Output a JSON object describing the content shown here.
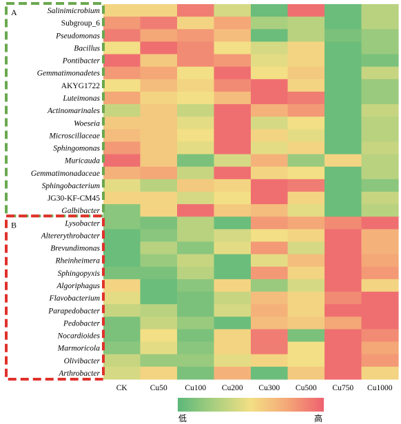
{
  "chart_data": {
    "type": "heatmap",
    "columns": [
      "CK",
      "Cu50",
      "Cu100",
      "Cu200",
      "Cu300",
      "Cu500",
      "Cu750",
      "Cu1000"
    ],
    "rows": [
      {
        "label": "Salinimicrobium",
        "italic": true
      },
      {
        "label": "Subgroup_6",
        "italic": false
      },
      {
        "label": "Pseudomonas",
        "italic": true
      },
      {
        "label": "Bacillus",
        "italic": true
      },
      {
        "label": "Pontibacter",
        "italic": true
      },
      {
        "label": "Gemmatimonadetes",
        "italic": true
      },
      {
        "label": "AKYG1722",
        "italic": false
      },
      {
        "label": "Luteimonas",
        "italic": true
      },
      {
        "label": "Actinomarinales",
        "italic": true
      },
      {
        "label": "Woeseia",
        "italic": true
      },
      {
        "label": "Microscillaceae",
        "italic": true
      },
      {
        "label": "Sphingomonas",
        "italic": true
      },
      {
        "label": "Muricauda",
        "italic": true
      },
      {
        "label": "Gemmatimonadaceae",
        "italic": true
      },
      {
        "label": "Sphingobacterium",
        "italic": true
      },
      {
        "label": "JG30-KF-CM45",
        "italic": false
      },
      {
        "label": "Galbibacter",
        "italic": true
      },
      {
        "label": "Lysobacter",
        "italic": true
      },
      {
        "label": "Altererythrobacter",
        "italic": true
      },
      {
        "label": "Brevundimonas",
        "italic": true
      },
      {
        "label": "Rheinheimera",
        "italic": true
      },
      {
        "label": "Sphingopyxis",
        "italic": true
      },
      {
        "label": "Algoriphagus",
        "italic": true
      },
      {
        "label": "Flavobacterium",
        "italic": true
      },
      {
        "label": "Parapedobacter",
        "italic": true
      },
      {
        "label": "Pedobacter",
        "italic": true
      },
      {
        "label": "Nocardioides",
        "italic": true
      },
      {
        "label": "Marmoricola",
        "italic": true
      },
      {
        "label": "Olivibacter",
        "italic": true
      },
      {
        "label": "Arthrobacter",
        "italic": true
      }
    ],
    "values": [
      [
        0.55,
        0.55,
        0.9,
        0.4,
        0.05,
        0.95,
        0.05,
        0.3
      ],
      [
        0.8,
        0.9,
        0.55,
        0.75,
        0.25,
        0.3,
        0.05,
        0.3
      ],
      [
        0.9,
        0.75,
        0.8,
        0.65,
        0.05,
        0.3,
        0.1,
        0.2
      ],
      [
        0.5,
        0.95,
        0.85,
        0.5,
        0.4,
        0.55,
        0.05,
        0.2
      ],
      [
        0.95,
        0.6,
        0.85,
        0.8,
        0.45,
        0.55,
        0.05,
        0.1
      ],
      [
        0.8,
        0.75,
        0.5,
        0.95,
        0.5,
        0.6,
        0.05,
        0.35
      ],
      [
        0.5,
        0.65,
        0.55,
        0.85,
        0.95,
        0.55,
        0.05,
        0.2
      ],
      [
        0.75,
        0.55,
        0.5,
        0.65,
        0.95,
        0.9,
        0.05,
        0.2
      ],
      [
        0.35,
        0.6,
        0.35,
        0.95,
        0.7,
        0.8,
        0.05,
        0.35
      ],
      [
        0.6,
        0.6,
        0.45,
        0.95,
        0.4,
        0.5,
        0.05,
        0.3
      ],
      [
        0.65,
        0.6,
        0.5,
        0.95,
        0.55,
        0.45,
        0.05,
        0.3
      ],
      [
        0.8,
        0.6,
        0.45,
        0.95,
        0.45,
        0.55,
        0.05,
        0.35
      ],
      [
        0.95,
        0.6,
        0.1,
        0.4,
        0.7,
        0.2,
        0.55,
        0.3
      ],
      [
        0.7,
        0.75,
        0.35,
        0.95,
        0.55,
        0.5,
        0.05,
        0.3
      ],
      [
        0.45,
        0.3,
        0.6,
        0.55,
        0.95,
        0.9,
        0.05,
        0.15
      ],
      [
        0.55,
        0.55,
        0.4,
        0.5,
        0.95,
        0.55,
        0.05,
        0.35
      ],
      [
        0.15,
        0.55,
        0.95,
        0.6,
        0.65,
        0.45,
        0.05,
        0.3
      ],
      [
        0.15,
        0.1,
        0.3,
        0.05,
        0.8,
        0.75,
        0.85,
        0.95
      ],
      [
        0.05,
        0.15,
        0.3,
        0.4,
        0.5,
        0.55,
        0.95,
        0.7
      ],
      [
        0.05,
        0.3,
        0.15,
        0.45,
        0.8,
        0.4,
        0.95,
        0.7
      ],
      [
        0.05,
        0.2,
        0.35,
        0.05,
        0.45,
        0.65,
        0.95,
        0.75
      ],
      [
        0.1,
        0.1,
        0.3,
        0.05,
        0.8,
        0.55,
        0.95,
        0.8
      ],
      [
        0.55,
        0.05,
        0.15,
        0.55,
        0.2,
        0.4,
        0.95,
        0.55
      ],
      [
        0.45,
        0.05,
        0.1,
        0.35,
        0.65,
        0.55,
        0.85,
        0.95
      ],
      [
        0.35,
        0.3,
        0.1,
        0.4,
        0.7,
        0.55,
        0.95,
        0.95
      ],
      [
        0.1,
        0.35,
        0.2,
        0.05,
        0.65,
        0.6,
        0.75,
        0.95
      ],
      [
        0.1,
        0.5,
        0.1,
        0.55,
        0.9,
        0.1,
        0.95,
        0.85
      ],
      [
        0.15,
        0.45,
        0.15,
        0.55,
        0.9,
        0.5,
        0.95,
        0.75
      ],
      [
        0.35,
        0.2,
        0.2,
        0.45,
        0.55,
        0.5,
        0.95,
        0.8
      ],
      [
        0.4,
        0.55,
        0.1,
        0.7,
        0.05,
        0.6,
        0.95,
        0.55
      ]
    ],
    "groups": [
      {
        "label": "A",
        "start": 0,
        "end": 16,
        "color": "#6aa84f"
      },
      {
        "label": "B",
        "start": 17,
        "end": 29,
        "color": "#e0312b"
      }
    ],
    "colorscale": [
      "#5cb87a",
      "#a9cf7f",
      "#f3df85",
      "#f4a777",
      "#ee6170"
    ],
    "legend": {
      "low": "低",
      "high": "高"
    }
  }
}
